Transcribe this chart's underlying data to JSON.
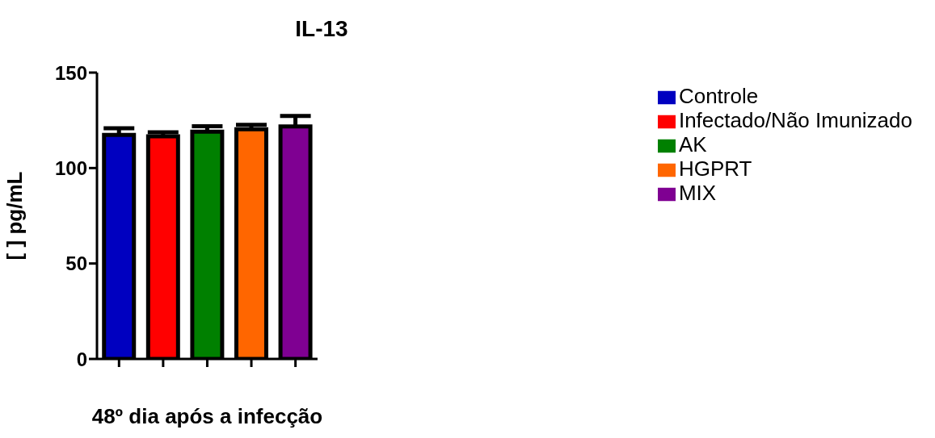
{
  "chart_data": {
    "type": "bar",
    "title": "IL-13",
    "xlabel": "48º dia após a infecção",
    "ylabel": "[ ] pg/mL",
    "categories": [
      null,
      null,
      null,
      null,
      null
    ],
    "series": [
      {
        "name": "Controle",
        "color": "#0000c0",
        "values": [
          117.4,
          null,
          null,
          null,
          null
        ],
        "errors": [
          [
            117.4,
            120.8
          ],
          null,
          null,
          null,
          null
        ]
      },
      {
        "name": "Infectado/Não Imunizado",
        "color": "#ff0000",
        "values": [
          null,
          116.6,
          null,
          null,
          null
        ],
        "errors": [
          null,
          [
            116.6,
            118.7
          ],
          null,
          null,
          null
        ]
      },
      {
        "name": "AK",
        "color": "#008000",
        "values": [
          null,
          null,
          119.0,
          null,
          null
        ],
        "errors": [
          null,
          null,
          [
            119.0,
            121.9
          ],
          null,
          null
        ]
      },
      {
        "name": "HGPRT",
        "color": "#ff6600",
        "values": [
          null,
          null,
          null,
          120.3,
          null
        ],
        "errors": [
          null,
          null,
          null,
          [
            120.3,
            122.6
          ],
          null
        ]
      },
      {
        "name": "MIX",
        "color": "#7f0092",
        "values": [
          null,
          null,
          null,
          null,
          121.8
        ],
        "errors": [
          null,
          null,
          null,
          null,
          [
            121.8,
            127.3
          ]
        ]
      }
    ],
    "stacked": true,
    "ylim": [
      0,
      150
    ],
    "yticks": [
      0,
      50,
      100,
      150
    ],
    "grid": false,
    "legend": "right",
    "tick_labels": "y"
  }
}
